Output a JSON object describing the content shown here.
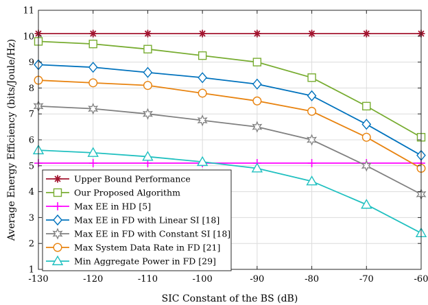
{
  "chart_data": {
    "type": "line",
    "title": "",
    "xlabel": "SIC Constant of the BS (dB)",
    "ylabel": "Average Energy Efficiency (bits/Joule/Hz)",
    "x": [
      -130,
      -120,
      -110,
      -100,
      -90,
      -80,
      -70,
      -60
    ],
    "xlim": [
      -130,
      -60
    ],
    "ylim": [
      1,
      11
    ],
    "xticks": [
      -130,
      -120,
      -110,
      -100,
      -90,
      -80,
      -70,
      -60
    ],
    "yticks": [
      1,
      2,
      3,
      4,
      5,
      6,
      7,
      8,
      9,
      10,
      11
    ],
    "grid": true,
    "legend_position": "bottom-left",
    "series": [
      {
        "name": "Upper Bound Performance",
        "color": "#A2142F",
        "marker": "asterisk",
        "values": [
          10.1,
          10.1,
          10.1,
          10.1,
          10.1,
          10.1,
          10.1,
          10.1
        ]
      },
      {
        "name": "Our Proposed Algorithm",
        "color": "#77AC30",
        "marker": "square",
        "values": [
          9.8,
          9.7,
          9.5,
          9.25,
          9.0,
          8.4,
          7.3,
          6.1
        ]
      },
      {
        "name": "Max EE in HD [5]",
        "color": "#FF00FF",
        "marker": "plus",
        "values": [
          5.1,
          5.1,
          5.1,
          5.1,
          5.1,
          5.1,
          5.1,
          5.1
        ]
      },
      {
        "name": "Max EE in FD with Linear SI [18]",
        "color": "#0072BD",
        "marker": "diamond",
        "values": [
          8.9,
          8.8,
          8.6,
          8.4,
          8.15,
          7.7,
          6.6,
          5.4
        ]
      },
      {
        "name": "Max EE in FD with Constant SI [18]",
        "color": "#808080",
        "marker": "hexagram",
        "values": [
          7.3,
          7.2,
          7.0,
          6.75,
          6.5,
          6.0,
          5.0,
          3.9
        ]
      },
      {
        "name": "Max System Data Rate in FD [21]",
        "color": "#E8830F",
        "marker": "circle",
        "values": [
          8.3,
          8.2,
          8.1,
          7.8,
          7.5,
          7.1,
          6.1,
          4.9
        ]
      },
      {
        "name": "Min Aggregate Power in FD [29]",
        "color": "#20C0C0",
        "marker": "triangle",
        "values": [
          5.6,
          5.5,
          5.35,
          5.15,
          4.9,
          4.4,
          3.5,
          2.4
        ]
      }
    ]
  }
}
